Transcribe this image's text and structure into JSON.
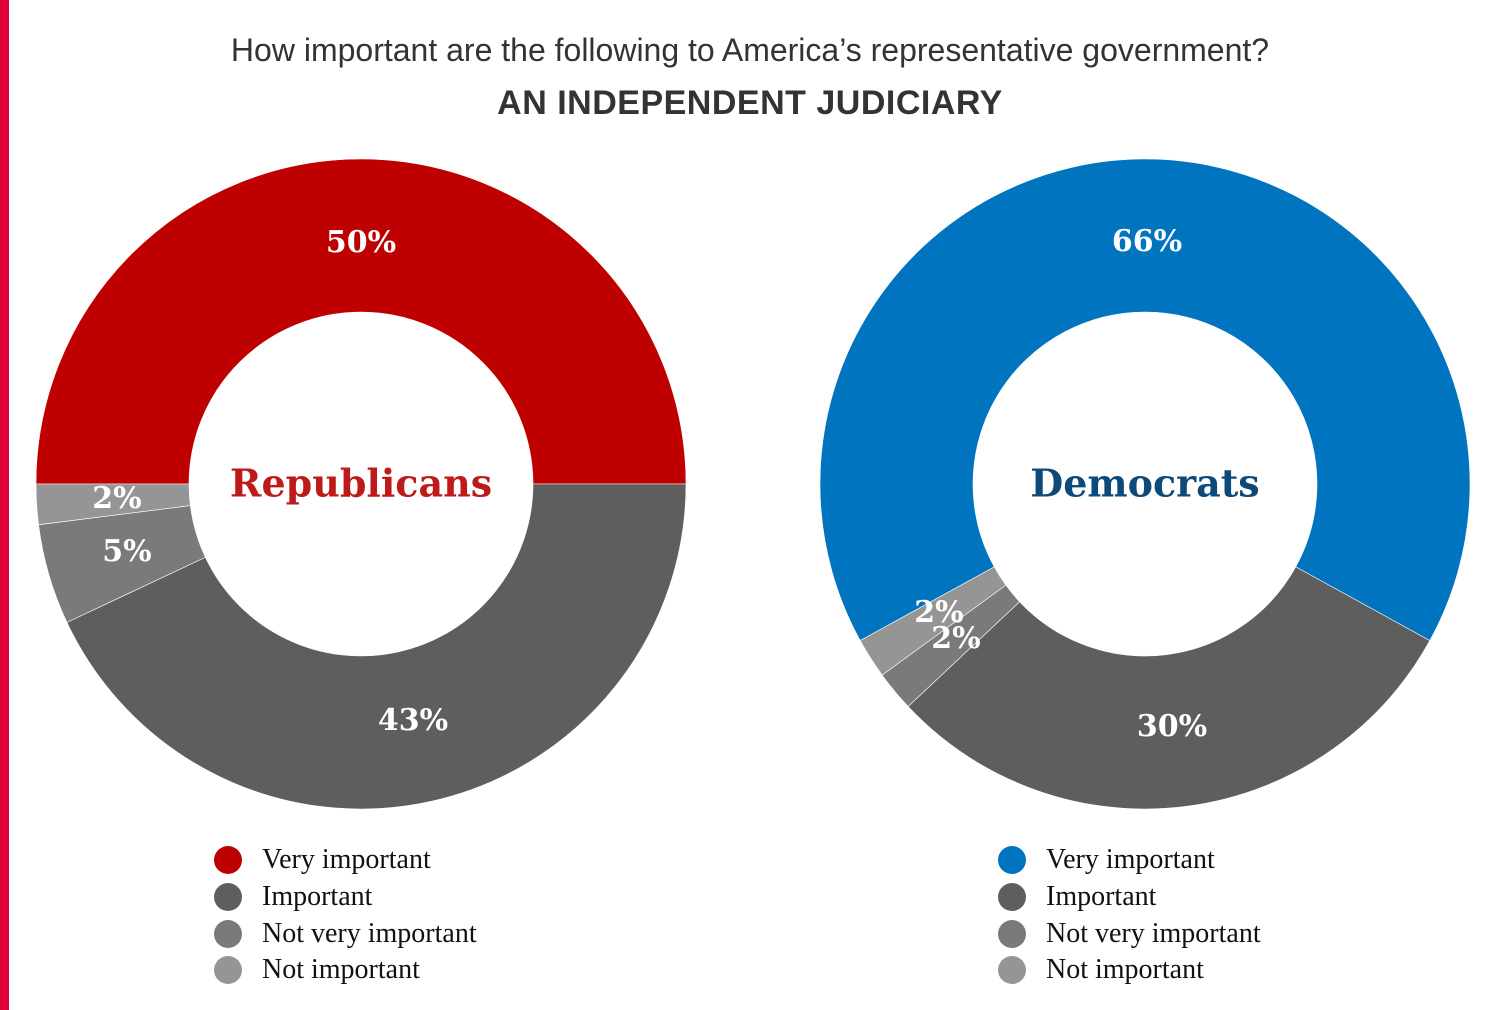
{
  "title": "How important are the following to America’s representative government?",
  "subtitle": "AN INDEPENDENT JUDICIARY",
  "chart_data": [
    {
      "type": "pie",
      "donut": true,
      "center_label": "Republicans",
      "center_label_color": "#bf1a1a",
      "categories": [
        "Very important",
        "Important",
        "Not very important",
        "Not important"
      ],
      "values": [
        50,
        43,
        5,
        2
      ],
      "data_labels": [
        "50%",
        "43%",
        "5%",
        "2%"
      ],
      "colors": [
        "#bf0000",
        "#5e5e5e",
        "#7a7a7a",
        "#959595"
      ],
      "legend": "bottom"
    },
    {
      "type": "pie",
      "donut": true,
      "center_label": "Democrats",
      "center_label_color": "#0d4a7a",
      "categories": [
        "Very important",
        "Important",
        "Not very important",
        "Not important"
      ],
      "values": [
        66,
        30,
        2,
        2
      ],
      "data_labels": [
        "66%",
        "30%",
        "2%",
        "2%"
      ],
      "colors": [
        "#0074bf",
        "#5e5e5e",
        "#7a7a7a",
        "#959595"
      ],
      "legend": "bottom"
    }
  ]
}
